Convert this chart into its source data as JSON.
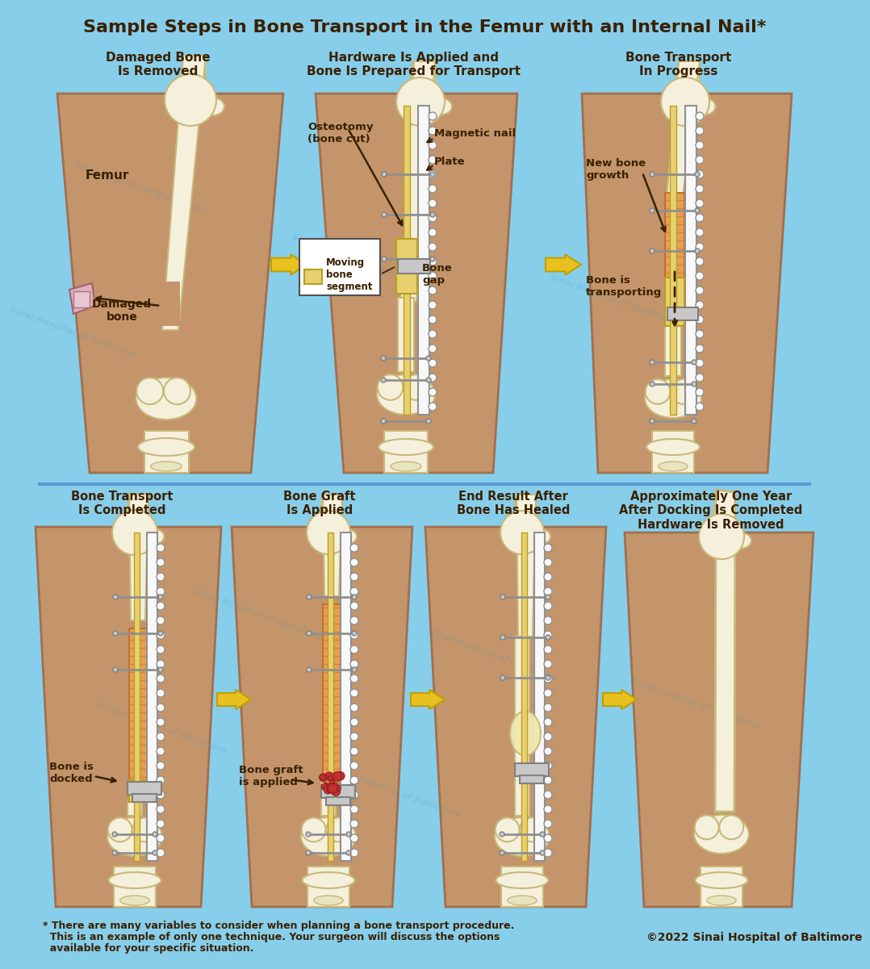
{
  "background_color": "#87CEEB",
  "title": "Sample Steps in Bone Transport in the Femur with an Internal Nail*",
  "title_color": "#3B2000",
  "title_fontsize": 16,
  "footer_line1": "* There are many variables to consider when planning a bone transport procedure.",
  "footer_line2": "  This is an example of only one technique. Your surgeon will discuss the options",
  "footer_line3": "  available for your specific situation.",
  "footer_copyright": "©2022 Sinai Hospital of Baltimore",
  "text_color": "#3B2000",
  "skin_color": "#C4956A",
  "skin_edge": "#A07050",
  "bone_color": "#F5F0DC",
  "bone_outline": "#C8B87A",
  "nail_color": "#E8D070",
  "nail_edge": "#B8A020",
  "plate_color": "#F8F8F8",
  "plate_edge": "#909090",
  "screw_color": "#909090",
  "new_bone_color": "#E8A050",
  "new_bone_edge": "#C07030",
  "damaged_color_top": "#E8C0C8",
  "damaged_color_bot": "#D090A0",
  "arrow_fill": "#E8C020",
  "arrow_edge": "#C0A000",
  "hw_color": "#C8C8C8",
  "hw_edge": "#808080",
  "graft_color": "#C03030",
  "graft_edge": "#801010",
  "wm_color": "#5090B0",
  "divider_color": "#5B9BD5"
}
